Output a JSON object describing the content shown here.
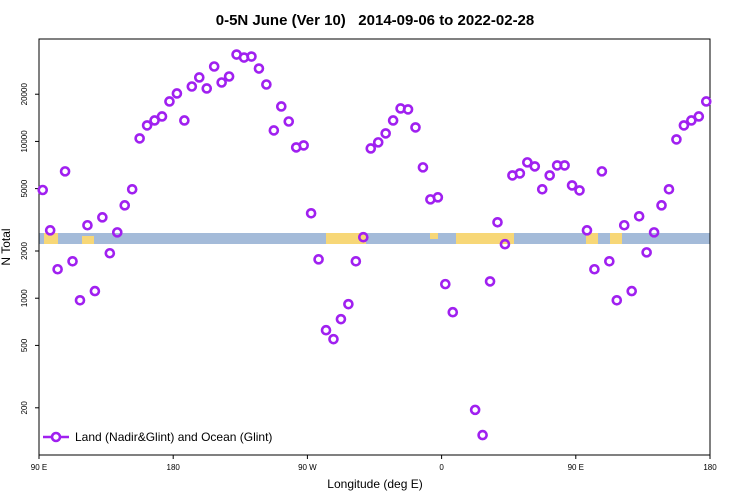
{
  "chart_data": {
    "type": "scatter",
    "title": "0-5N June (Ver 10)   2014-09-06 to 2022-02-28",
    "x_label": "Longitude (deg E)",
    "y_label": "N Total",
    "xlim": [
      90,
      540
    ],
    "ylim": [
      100,
      45000
    ],
    "ylog": true,
    "xticks": [
      {
        "value": 90,
        "label": "90 E"
      },
      180,
      {
        "value": 270,
        "label": "90 W"
      },
      {
        "value": 360,
        "label": "0"
      },
      {
        "value": 450,
        "label": "90 E"
      },
      {
        "value": 540,
        "label": "180"
      }
    ],
    "yticks": [
      200,
      500,
      1000,
      2000,
      5000,
      10000,
      20000
    ],
    "legend": "bottom-left",
    "series": [
      {
        "name": "Land (Nadir&Glint) and Ocean (Glint)",
        "color": "#a020f0",
        "x": [
          92.5,
          97.5,
          102.5,
          107.5,
          112.5,
          117.5,
          122.5,
          127.5,
          132.5,
          137.5,
          142.5,
          147.5,
          152.5,
          157.5,
          162.5,
          167.5,
          172.5,
          177.5,
          182.5,
          187.5,
          192.5,
          197.5,
          202.5,
          207.5,
          212.5,
          217.5,
          222.5,
          227.5,
          232.5,
          237.5,
          242.5,
          247.5,
          252.5,
          257.5,
          262.5,
          267.5,
          272.5,
          277.5,
          282.5,
          287.5,
          292.5,
          297.5,
          302.5,
          307.5,
          312.5,
          317.5,
          322.5,
          327.5,
          332.5,
          337.5,
          342.5,
          347.5,
          352.5,
          357.5,
          362.5,
          367.5,
          382.5,
          387.5,
          392.5,
          397.5,
          402.5,
          407.5,
          412.5,
          417.5,
          422.5,
          427.5,
          432.5,
          437.5,
          442.5,
          447.5,
          452.5,
          457.5,
          462.5,
          467.5,
          472.5,
          477.5,
          482.5,
          487.5,
          492.5,
          497.5,
          502.5,
          507.5,
          512.5,
          517.5,
          522.5,
          527.5,
          532.5,
          537.5
        ],
        "values": [
          4900,
          2710,
          1530,
          6440,
          1720,
          970,
          2920,
          1110,
          3280,
          1935,
          2630,
          3910,
          4950,
          10450,
          12650,
          13600,
          14430,
          17980,
          20220,
          13600,
          22400,
          25580,
          21770,
          30050,
          23760,
          25940,
          35810,
          34270,
          34780,
          29170,
          23070,
          11750,
          16710,
          13400,
          9160,
          9430,
          3480,
          1770,
          625,
          548,
          735,
          916,
          1720,
          2450,
          9020,
          9860,
          11250,
          13600,
          16230,
          16000,
          12280,
          6830,
          4270,
          4400,
          1230,
          814,
          194,
          134,
          1280,
          3050,
          2210,
          6070,
          6250,
          7350,
          6930,
          4950,
          6070,
          7030,
          7030,
          5240,
          4870,
          2710,
          1530,
          6440,
          1720,
          970,
          2920,
          1110,
          3330,
          1960,
          2630,
          3910,
          4950,
          10300,
          12650,
          13600,
          14430,
          17980
        ]
      }
    ]
  }
}
